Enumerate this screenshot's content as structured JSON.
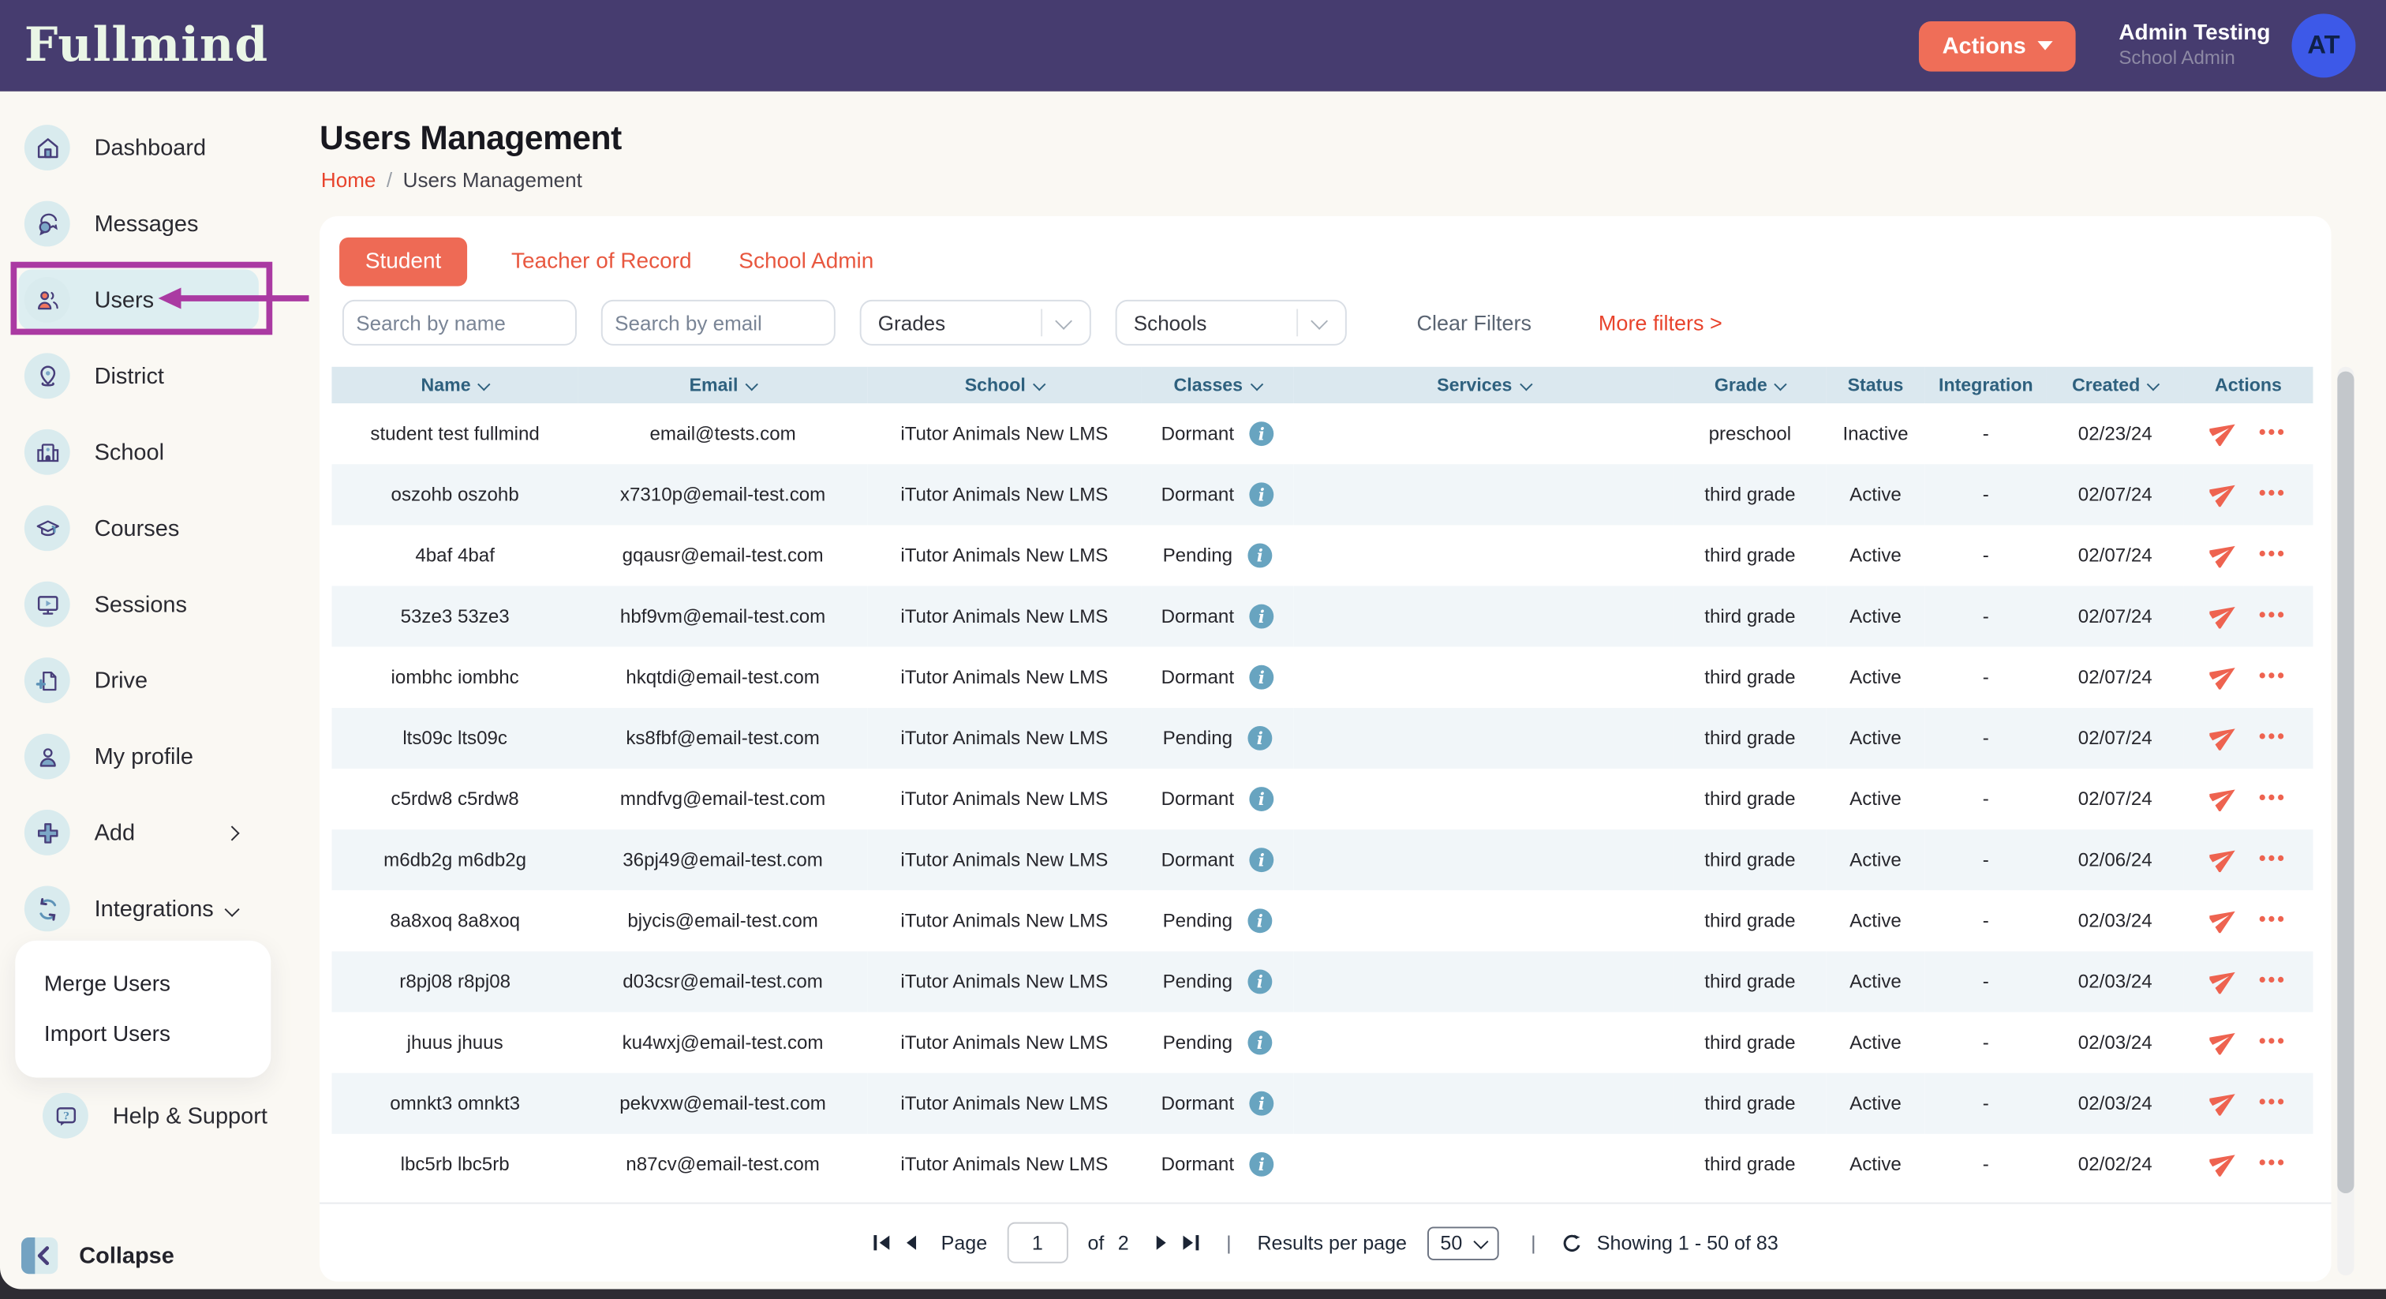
{
  "navbar": {
    "logo_text": "Fullmind",
    "actions_button": "Actions",
    "user_name": "Admin Testing",
    "user_role": "School Admin",
    "avatar_initials": "AT"
  },
  "sidebar": {
    "items": [
      {
        "label": "Dashboard",
        "icon": "home-icon",
        "active": false
      },
      {
        "label": "Messages",
        "icon": "chat-bubbles-icon",
        "active": false
      },
      {
        "label": "Users",
        "icon": "users-icon",
        "active": true,
        "annotated": true
      },
      {
        "label": "District",
        "icon": "map-pin-icon",
        "active": false
      },
      {
        "label": "School",
        "icon": "school-building-icon",
        "active": false
      },
      {
        "label": "Courses",
        "icon": "graduation-cap-icon",
        "active": false
      },
      {
        "label": "Sessions",
        "icon": "monitor-play-icon",
        "active": false
      },
      {
        "label": "Drive",
        "icon": "file-plus-icon",
        "active": false
      },
      {
        "label": "My profile",
        "icon": "profile-icon",
        "active": false
      },
      {
        "label": "Add",
        "icon": "plus-icon",
        "active": false,
        "chevron": "right"
      },
      {
        "label": "Integrations",
        "icon": "sync-icon",
        "active": false,
        "chevron": "down"
      }
    ],
    "submenu_items": [
      "Merge Users",
      "Import Users"
    ],
    "help_item": {
      "label": "Help & Support",
      "icon": "help-bubble-icon"
    },
    "collapse_label": "Collapse"
  },
  "page": {
    "title": "Users Management",
    "breadcrumb_home": "Home",
    "breadcrumb_separator": "/",
    "breadcrumb_current": "Users Management"
  },
  "tabs": [
    {
      "label": "Student",
      "active": true
    },
    {
      "label": "Teacher of Record",
      "active": false
    },
    {
      "label": "School Admin",
      "active": false
    }
  ],
  "filters": {
    "search_name_placeholder": "Search by name",
    "search_email_placeholder": "Search by email",
    "grades_label": "Grades",
    "schools_label": "Schools",
    "clear_filters_label": "Clear Filters",
    "more_filters_label": "More filters >"
  },
  "table": {
    "columns": [
      {
        "label": "Name",
        "key": "name",
        "sortable": true
      },
      {
        "label": "Email",
        "key": "email",
        "sortable": true
      },
      {
        "label": "School",
        "key": "school",
        "sortable": true
      },
      {
        "label": "Classes",
        "key": "classes",
        "sortable": true
      },
      {
        "label": "Services",
        "key": "services",
        "sortable": true
      },
      {
        "label": "Grade",
        "key": "grade",
        "sortable": true
      },
      {
        "label": "Status",
        "key": "status",
        "sortable": false
      },
      {
        "label": "Integration",
        "key": "integration",
        "sortable": false
      },
      {
        "label": "Created",
        "key": "created",
        "sortable": true
      },
      {
        "label": "Actions",
        "key": "actions",
        "sortable": false
      }
    ],
    "rows": [
      {
        "name": "student test fullmind",
        "email": "email@tests.com",
        "school": "iTutor Animals New LMS",
        "classes": "Dormant",
        "services": "",
        "grade": "preschool",
        "status": "Inactive",
        "integration": "-",
        "created": "02/23/24"
      },
      {
        "name": "oszohb oszohb",
        "email": "x7310p@email-test.com",
        "school": "iTutor Animals New LMS",
        "classes": "Dormant",
        "services": "",
        "grade": "third grade",
        "status": "Active",
        "integration": "-",
        "created": "02/07/24"
      },
      {
        "name": "4baf 4baf",
        "email": "gqausr@email-test.com",
        "school": "iTutor Animals New LMS",
        "classes": "Pending",
        "services": "",
        "grade": "third grade",
        "status": "Active",
        "integration": "-",
        "created": "02/07/24"
      },
      {
        "name": "53ze3 53ze3",
        "email": "hbf9vm@email-test.com",
        "school": "iTutor Animals New LMS",
        "classes": "Dormant",
        "services": "",
        "grade": "third grade",
        "status": "Active",
        "integration": "-",
        "created": "02/07/24"
      },
      {
        "name": "iombhc iombhc",
        "email": "hkqtdi@email-test.com",
        "school": "iTutor Animals New LMS",
        "classes": "Dormant",
        "services": "",
        "grade": "third grade",
        "status": "Active",
        "integration": "-",
        "created": "02/07/24"
      },
      {
        "name": "lts09c lts09c",
        "email": "ks8fbf@email-test.com",
        "school": "iTutor Animals New LMS",
        "classes": "Pending",
        "services": "",
        "grade": "third grade",
        "status": "Active",
        "integration": "-",
        "created": "02/07/24"
      },
      {
        "name": "c5rdw8 c5rdw8",
        "email": "mndfvg@email-test.com",
        "school": "iTutor Animals New LMS",
        "classes": "Dormant",
        "services": "",
        "grade": "third grade",
        "status": "Active",
        "integration": "-",
        "created": "02/07/24"
      },
      {
        "name": "m6db2g m6db2g",
        "email": "36pj49@email-test.com",
        "school": "iTutor Animals New LMS",
        "classes": "Dormant",
        "services": "",
        "grade": "third grade",
        "status": "Active",
        "integration": "-",
        "created": "02/06/24"
      },
      {
        "name": "8a8xoq 8a8xoq",
        "email": "bjycis@email-test.com",
        "school": "iTutor Animals New LMS",
        "classes": "Pending",
        "services": "",
        "grade": "third grade",
        "status": "Active",
        "integration": "-",
        "created": "02/03/24"
      },
      {
        "name": "r8pj08 r8pj08",
        "email": "d03csr@email-test.com",
        "school": "iTutor Animals New LMS",
        "classes": "Pending",
        "services": "",
        "grade": "third grade",
        "status": "Active",
        "integration": "-",
        "created": "02/03/24"
      },
      {
        "name": "jhuus jhuus",
        "email": "ku4wxj@email-test.com",
        "school": "iTutor Animals New LMS",
        "classes": "Pending",
        "services": "",
        "grade": "third grade",
        "status": "Active",
        "integration": "-",
        "created": "02/03/24"
      },
      {
        "name": "omnkt3 omnkt3",
        "email": "pekvxw@email-test.com",
        "school": "iTutor Animals New LMS",
        "classes": "Dormant",
        "services": "",
        "grade": "third grade",
        "status": "Active",
        "integration": "-",
        "created": "02/03/24"
      },
      {
        "name": "lbc5rb lbc5rb",
        "email": "n87cv@email-test.com",
        "school": "iTutor Animals New LMS",
        "classes": "Dormant",
        "services": "",
        "grade": "third grade",
        "status": "Active",
        "integration": "-",
        "created": "02/02/24"
      }
    ]
  },
  "pagination": {
    "page_label": "Page",
    "page_value": "1",
    "of_label": "of",
    "total_pages": "2",
    "divider": "|",
    "results_per_page_label": "Results per page",
    "per_page_value": "50",
    "showing_text": "Showing 1 - 50 of 83"
  },
  "colors": {
    "navbar_bg": "#463C6F",
    "accent_coral": "#EE6A55",
    "link_red": "#E8432C",
    "name_red": "#E85A42",
    "annotation_magenta": "#AA3AA2",
    "table_header_bg": "#DBE8EF",
    "table_header_text": "#2E607E",
    "row_alt_bg": "#F1F6F9",
    "active_item_bg": "#DDEEF1",
    "avatar_bg": "#3D59E8",
    "icon_circle_bg": "#D9EBEE",
    "status_inactive_text": "#9CA3AC",
    "info_icon_bg": "#68A4C0"
  }
}
